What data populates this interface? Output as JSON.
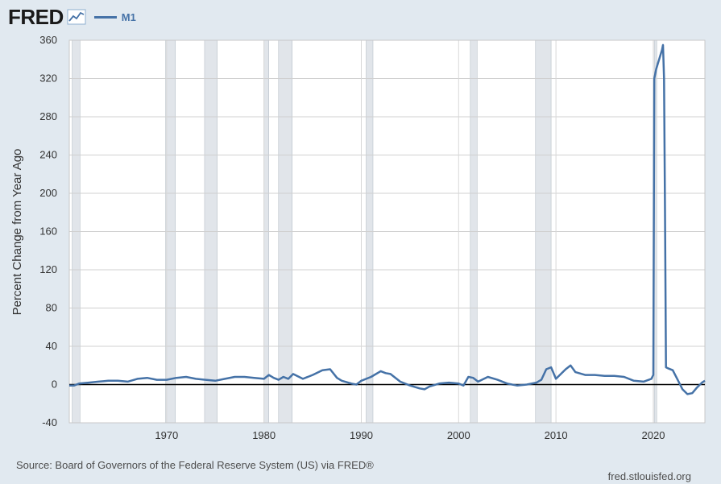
{
  "header": {
    "logo_text": "FRED",
    "logo_icon": "line-chart-icon",
    "legend_label": "M1",
    "series_color": "#4572a7"
  },
  "footer": {
    "source": "Source: Board of Governors of the Federal Reserve System (US) via FRED®",
    "site": "fred.stlouisfed.org"
  },
  "chart_data": {
    "type": "line",
    "title": "",
    "xlabel": "",
    "ylabel": "Percent Change from Year Ago",
    "xlim": [
      1960,
      2025.3
    ],
    "ylim": [
      -40,
      360
    ],
    "yticks": [
      -40,
      0,
      40,
      80,
      120,
      160,
      200,
      240,
      280,
      320,
      360
    ],
    "xticks": [
      1970,
      1980,
      1990,
      2000,
      2010,
      2020
    ],
    "grid": true,
    "legend_position": "top-left",
    "recessions": [
      [
        1960.3,
        1961.1
      ],
      [
        1969.9,
        1970.9
      ],
      [
        1973.9,
        1975.2
      ],
      [
        1980.0,
        1980.5
      ],
      [
        1981.5,
        1982.9
      ],
      [
        1990.5,
        1991.2
      ],
      [
        2001.2,
        2001.9
      ],
      [
        2007.9,
        2009.5
      ],
      [
        2020.1,
        2020.35
      ]
    ],
    "series": [
      {
        "name": "M1",
        "color": "#4572a7",
        "x": [
          1960.0,
          1960.5,
          1961.0,
          1962.0,
          1963.0,
          1964.0,
          1965.0,
          1966.0,
          1967.0,
          1968.0,
          1969.0,
          1970.0,
          1971.0,
          1972.0,
          1973.0,
          1974.0,
          1975.0,
          1976.0,
          1977.0,
          1978.0,
          1979.0,
          1980.0,
          1980.5,
          1981.0,
          1981.5,
          1982.0,
          1982.5,
          1983.0,
          1984.0,
          1985.0,
          1986.0,
          1986.8,
          1987.5,
          1988.0,
          1989.0,
          1989.5,
          1990.0,
          1991.0,
          1992.0,
          1992.5,
          1993.0,
          1994.0,
          1995.0,
          1996.0,
          1996.5,
          1997.0,
          1998.0,
          1999.0,
          2000.0,
          2000.5,
          2001.0,
          2001.5,
          2002.0,
          2003.0,
          2004.0,
          2005.0,
          2006.0,
          2007.0,
          2008.0,
          2008.5,
          2009.0,
          2009.5,
          2010.0,
          2011.0,
          2011.5,
          2012.0,
          2013.0,
          2014.0,
          2015.0,
          2016.0,
          2017.0,
          2018.0,
          2019.0,
          2019.8,
          2020.0,
          2020.1,
          2020.3,
          2020.6,
          2020.9,
          2021.0,
          2021.1,
          2021.2,
          2021.3,
          2021.5,
          2022.0,
          2022.5,
          2023.0,
          2023.5,
          2024.0,
          2024.5,
          2025.0,
          2025.3
        ],
        "values": [
          -1,
          -1,
          1,
          2,
          3,
          4,
          4,
          3,
          6,
          7,
          5,
          5,
          7,
          8,
          6,
          5,
          4,
          6,
          8,
          8,
          7,
          6,
          10,
          7,
          5,
          8,
          6,
          11,
          6,
          10,
          15,
          16,
          7,
          4,
          1,
          0,
          4,
          8,
          14,
          12,
          11,
          3,
          -1,
          -4,
          -5,
          -2,
          1,
          2,
          1,
          -1,
          8,
          7,
          3,
          8,
          5,
          1,
          -1,
          0,
          2,
          5,
          16,
          18,
          6,
          16,
          20,
          13,
          10,
          10,
          9,
          9,
          8,
          4,
          3,
          6,
          10,
          320,
          330,
          340,
          350,
          355,
          320,
          180,
          18,
          17,
          15,
          5,
          -5,
          -10,
          -9,
          -3,
          2,
          4
        ]
      }
    ]
  }
}
